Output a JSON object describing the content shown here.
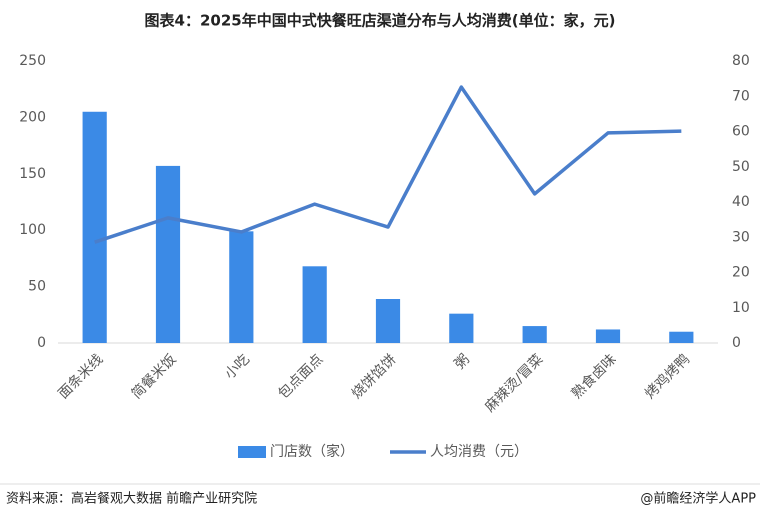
{
  "chart_data": {
    "type": "combo",
    "title": "图表4：2025年中国中式快餐旺店渠道分布与人均消费(单位：家，元)",
    "categories": [
      "面条米线",
      "简餐米饭",
      "小吃",
      "包点面点",
      "烧饼馅饼",
      "粥",
      "麻辣烫/冒菜",
      "熟食卤味",
      "烤鸡烤鸭"
    ],
    "series": [
      {
        "name": "门店数（家）",
        "type": "bar",
        "color": "#3b8ae6",
        "values": [
          205,
          157,
          99,
          68,
          39,
          26,
          15,
          12,
          10
        ]
      },
      {
        "name": "人均消费（元）",
        "type": "line",
        "axis": "y2",
        "color": "#4a7ecb",
        "values": [
          28.6,
          35.5,
          31.5,
          39.4,
          32.9,
          72.6,
          42.3,
          59.6,
          60.1
        ]
      }
    ],
    "ylim": [
      0,
      250
    ],
    "yticks": [
      0,
      50,
      100,
      150,
      200,
      250
    ],
    "y2lim": [
      0,
      80
    ],
    "y2ticks": [
      0,
      10,
      20,
      30,
      40,
      50,
      60,
      70,
      80
    ],
    "grid": false,
    "legend": "bottom"
  },
  "footer": {
    "source": "资料来源：高岩餐观大数据 前瞻产业研究院",
    "brand": "@前瞻经济学人APP"
  }
}
